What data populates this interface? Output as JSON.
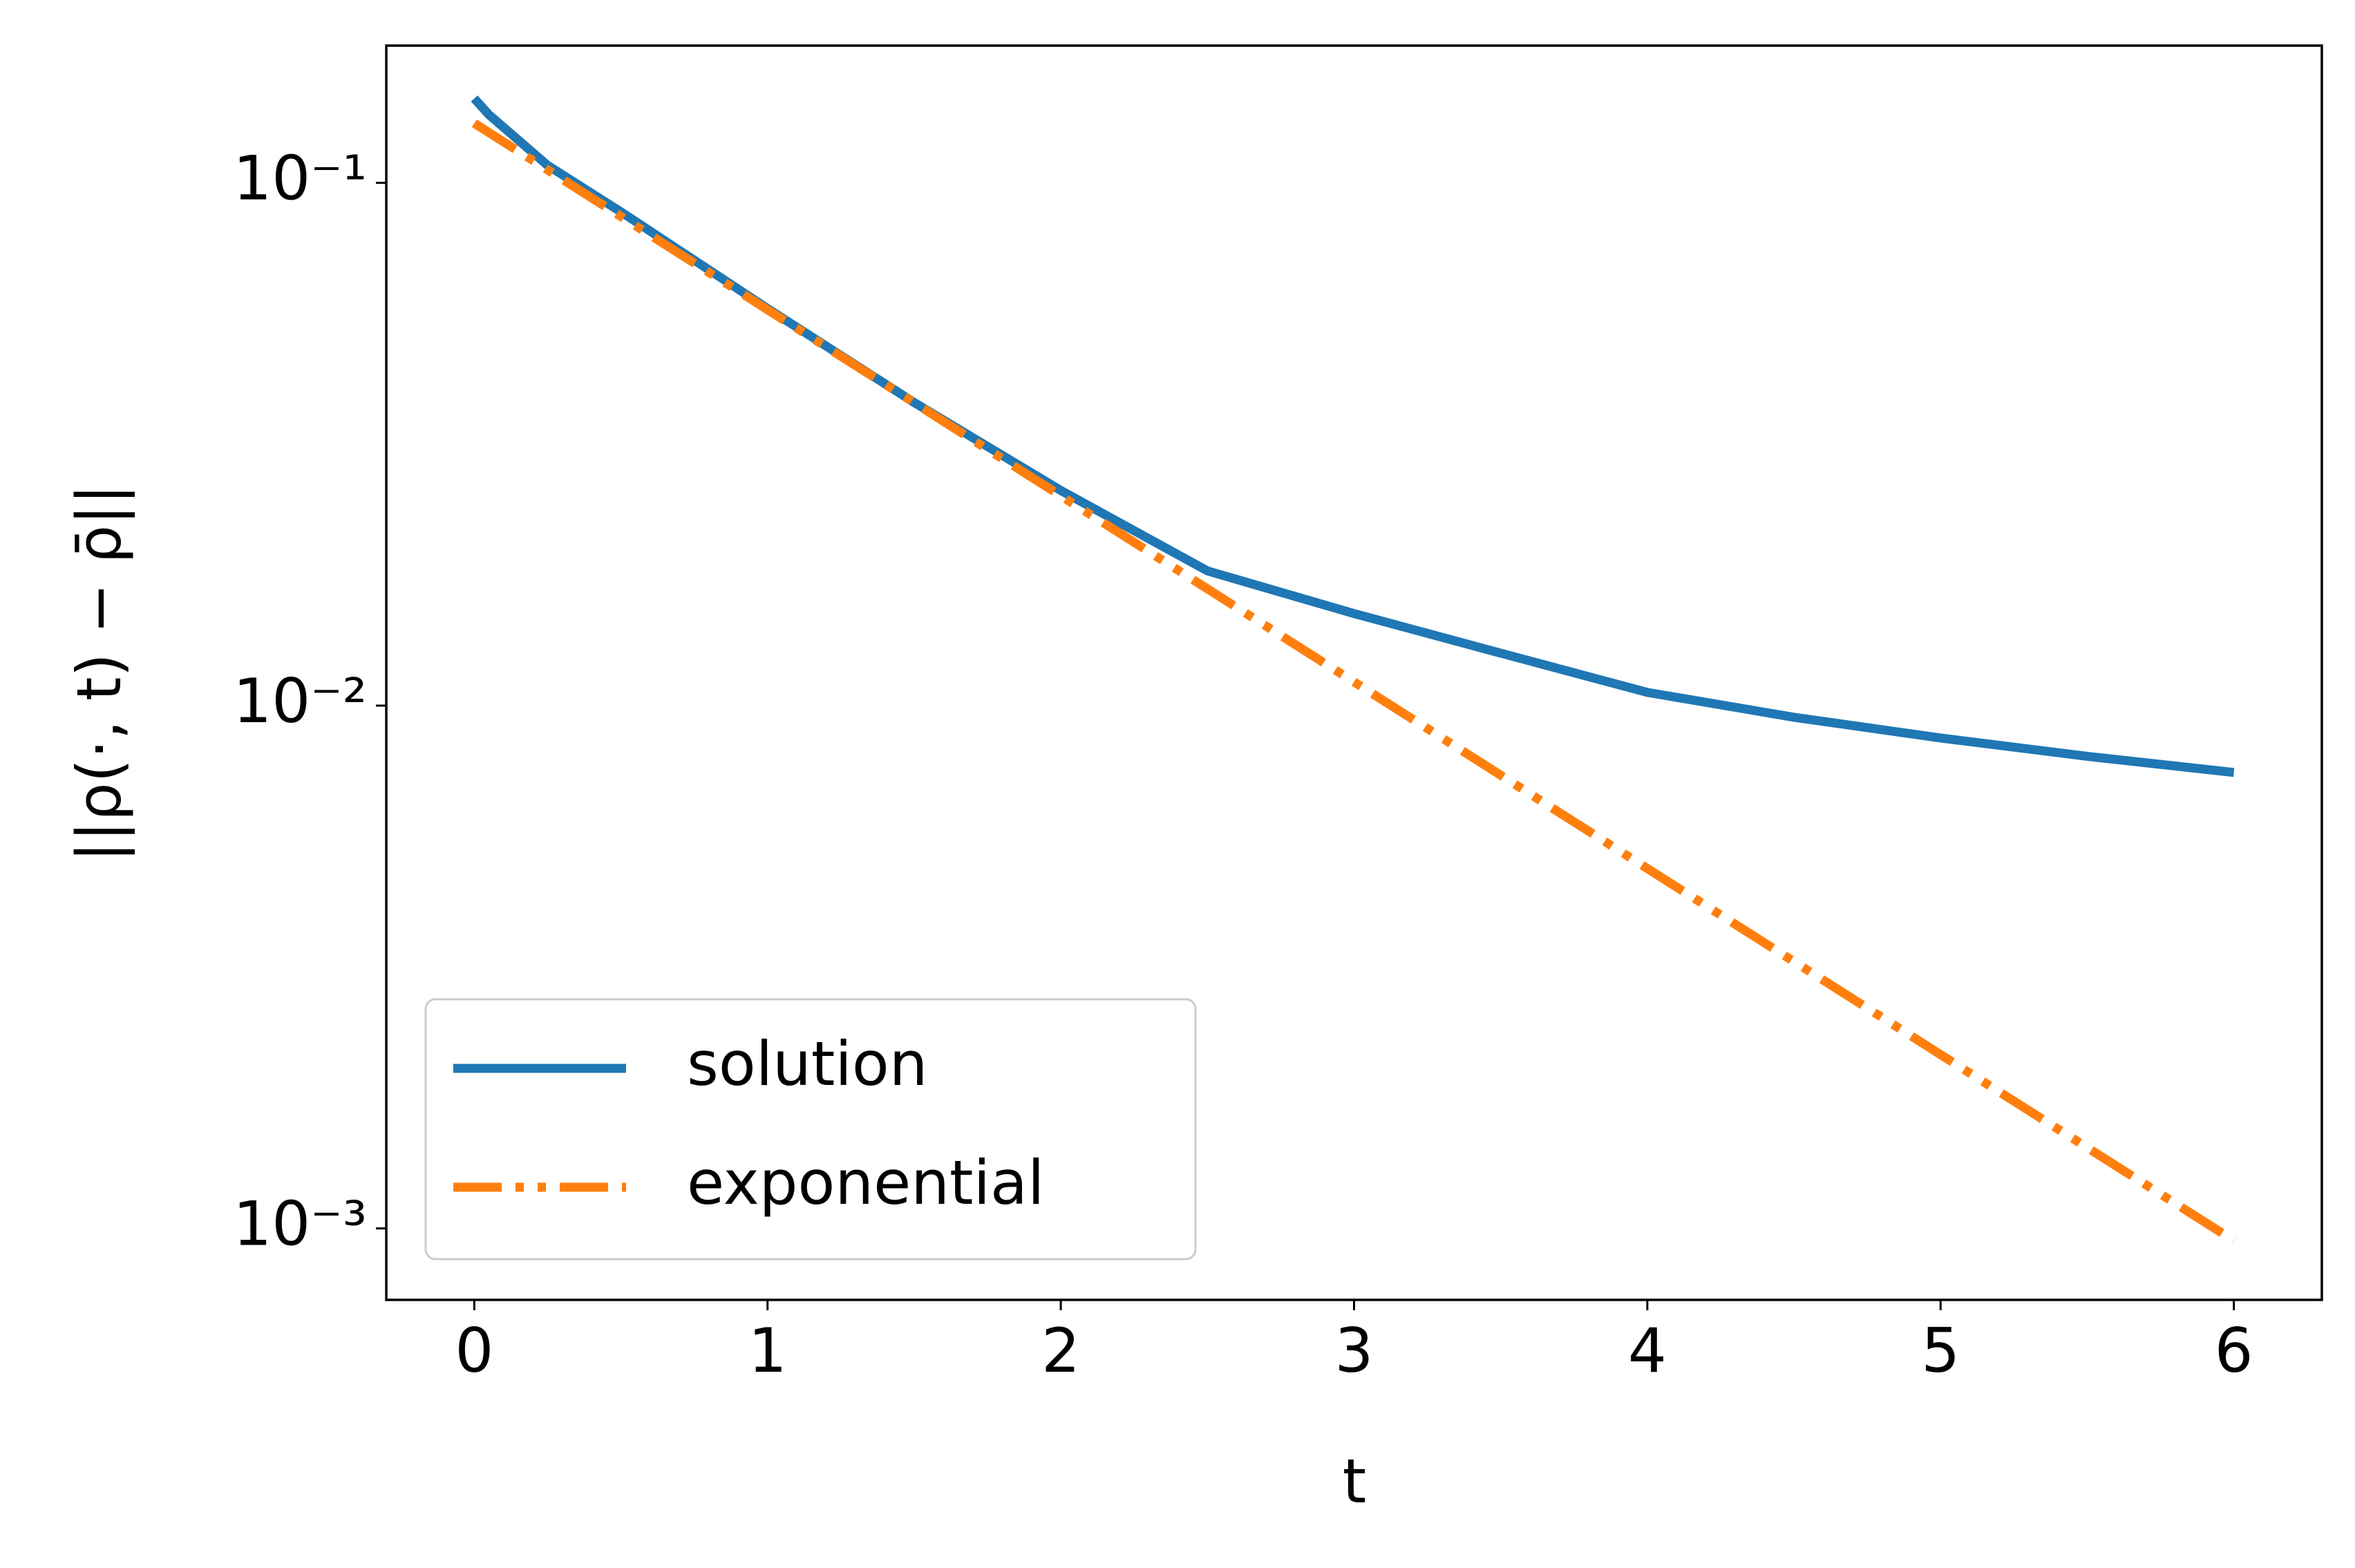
{
  "chart_data": {
    "type": "line",
    "xlabel": "t",
    "ylabel": "||ρ(·, t) − ρ̄||",
    "xlim": [
      -0.3,
      6.3
    ],
    "xticks": [
      0,
      1,
      2,
      3,
      4,
      5,
      6
    ],
    "ylim": [
      0.00073,
      0.183
    ],
    "yscale": "log",
    "yticks": [
      {
        "value": 0.1,
        "label": "10⁻¹"
      },
      {
        "value": 0.01,
        "label": "10⁻²"
      },
      {
        "value": 0.001,
        "label": "10⁻³"
      }
    ],
    "legend": "lower left",
    "series": [
      {
        "name": "solution",
        "color": "#1f77b4",
        "style": "solid",
        "x": [
          0,
          0.05,
          0.25,
          0.5,
          1,
          1.5,
          2,
          2.5,
          3,
          3.5,
          4,
          4.5,
          5,
          5.5,
          6
        ],
        "values": [
          0.145,
          0.135,
          0.108,
          0.088,
          0.0575,
          0.038,
          0.0258,
          0.0181,
          0.015,
          0.0126,
          0.0106,
          0.0095,
          0.00867,
          0.008,
          0.00745
        ]
      },
      {
        "name": "exponential",
        "color": "#ff7f0e",
        "style": "dashdotdot",
        "x": [
          0,
          1,
          2,
          3,
          4,
          5,
          6
        ],
        "values": [
          0.13,
          0.0572,
          0.0252,
          0.0111,
          0.00488,
          0.00215,
          0.000948
        ]
      }
    ]
  }
}
